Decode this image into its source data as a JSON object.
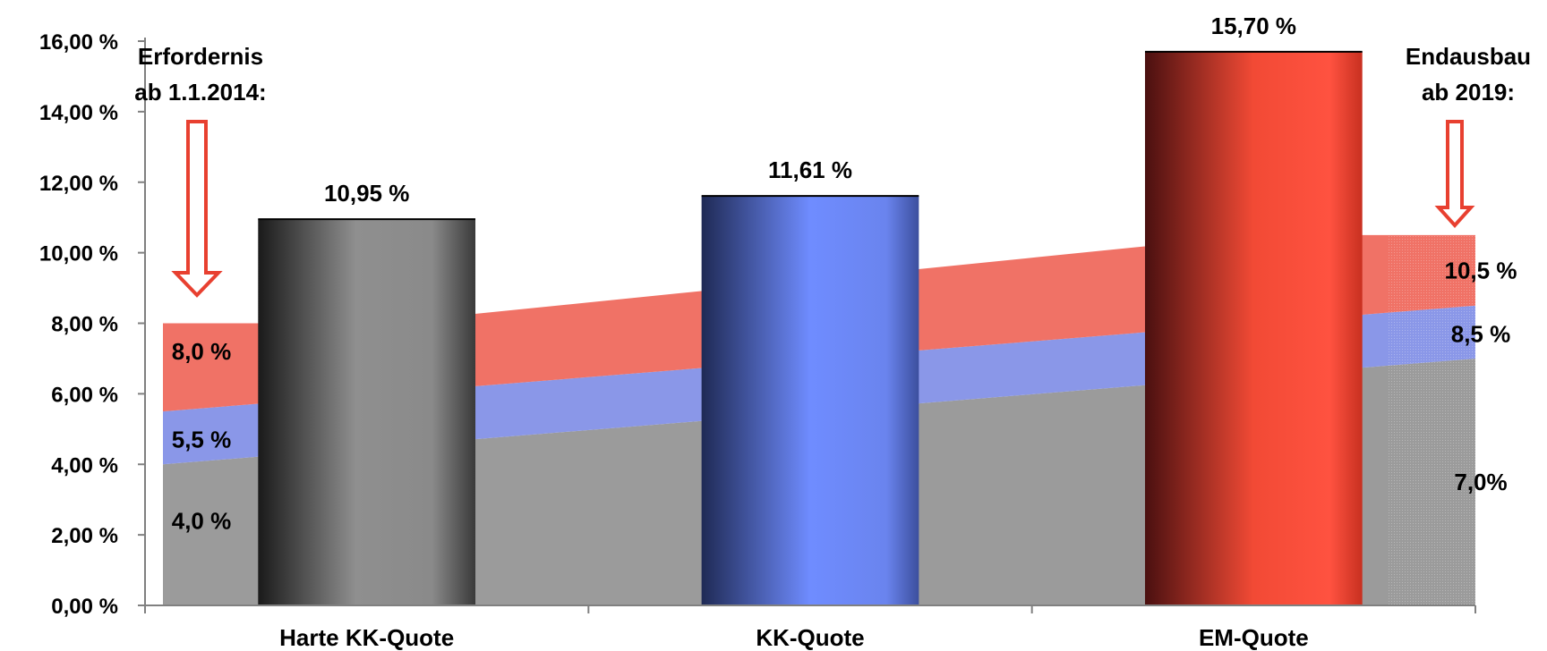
{
  "chart_data": {
    "type": "bar",
    "title": "",
    "xlabel": "",
    "ylabel": "",
    "ylim": [
      0,
      16
    ],
    "y_ticks": [
      "0,00 %",
      "2,00 %",
      "4,00 %",
      "6,00 %",
      "8,00 %",
      "10,00 %",
      "12,00 %",
      "14,00 %",
      "16,00 %"
    ],
    "grid": false,
    "categories": [
      "Harte KK-Quote",
      "KK-Quote",
      "EM-Quote"
    ],
    "bars": [
      {
        "category": "Harte KK-Quote",
        "value": 10.95,
        "label": "10,95 %",
        "color": "#8a8a8a"
      },
      {
        "category": "KK-Quote",
        "value": 11.61,
        "label": "11,61 %",
        "color": "#6b86f0"
      },
      {
        "category": "EM-Quote",
        "value": 15.7,
        "label": "15,70 %",
        "color": "#f0503a"
      }
    ],
    "requirement_bands": {
      "timeline_x": [
        0,
        1,
        2,
        3,
        4,
        5,
        6
      ],
      "layers": [
        {
          "color": "#9b9b9b",
          "y": [
            4.0,
            4.5,
            5.0,
            5.5,
            6.0,
            6.5,
            7.0
          ]
        },
        {
          "color": "#8a97e8",
          "y": [
            5.5,
            6.0,
            6.5,
            7.0,
            7.5,
            8.0,
            8.5
          ]
        },
        {
          "color": "#f07266",
          "y": [
            8.0,
            8.0,
            8.625,
            9.25,
            9.875,
            10.5,
            10.5
          ]
        }
      ],
      "start_labels": [
        "4,0 %",
        "5,5 %",
        "8,0 %"
      ],
      "end_labels": [
        "7,0%",
        "8,5 %",
        "10,5 %"
      ]
    },
    "annotations": {
      "left_note": [
        "Erfordernis",
        "ab 1.1.2014:"
      ],
      "right_note": [
        "Endausbau",
        "ab 2019:"
      ]
    }
  }
}
